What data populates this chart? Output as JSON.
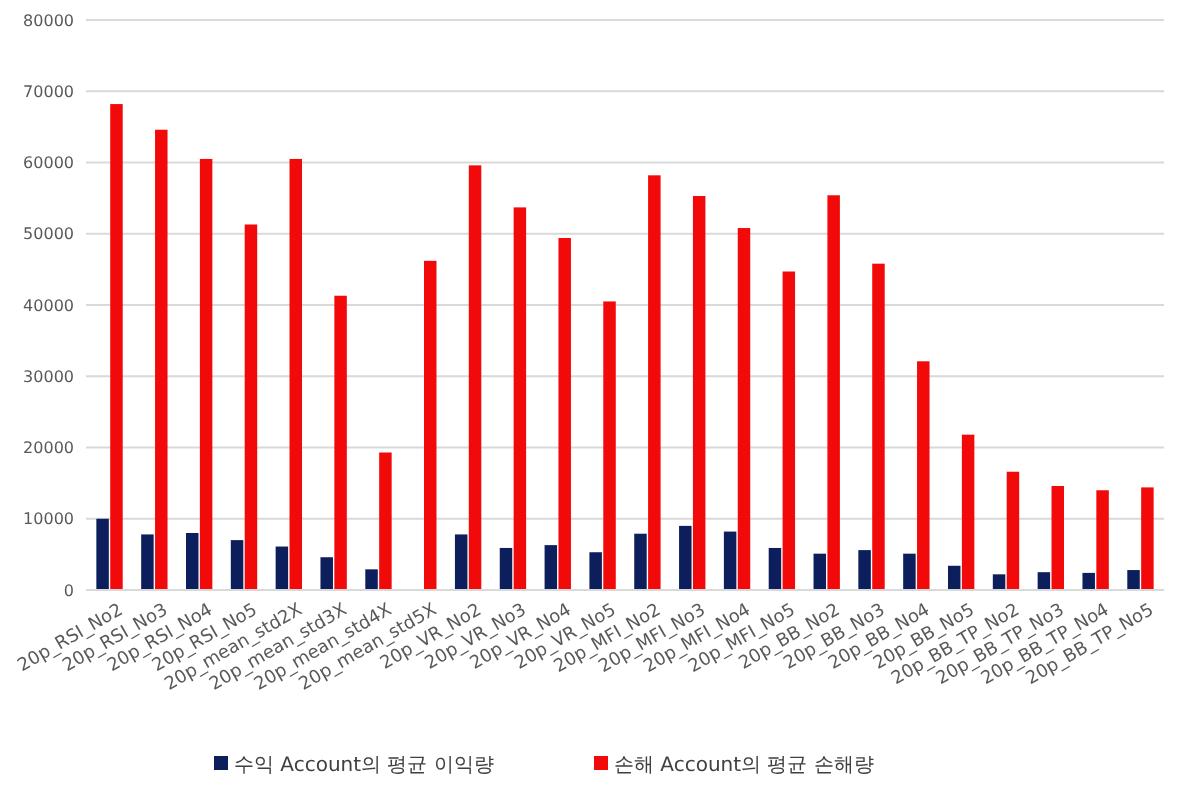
{
  "chart_data": {
    "type": "bar",
    "categories": [
      "20p_RSI_No2",
      "20p_RSI_No3",
      "20p_RSI_No4",
      "20p_RSI_No5",
      "20p_mean_std2X",
      "20p_mean_std3X",
      "20p_mean_std4X",
      "20p_mean_std5X",
      "20p_VR_No2",
      "20p_VR_No3",
      "20p_VR_No4",
      "20p_VR_No5",
      "20p_MFI_No2",
      "20p_MFI_No3",
      "20p_MFI_No4",
      "20p_MFI_No5",
      "20p_BB_No2",
      "20p_BB_No3",
      "20p_BB_No4",
      "20p_BB_No5",
      "20p_BB_TP_No2",
      "20p_BB_TP_No3",
      "20p_BB_TP_No4",
      "20p_BB_TP_No5"
    ],
    "series": [
      {
        "name": "수익 Account의 평균 이익량",
        "color": "#0c1f5c",
        "values": [
          10000,
          7800,
          8000,
          7000,
          6100,
          4600,
          2900,
          0,
          7800,
          5900,
          6300,
          5300,
          7900,
          9000,
          8200,
          5900,
          5100,
          5600,
          5100,
          3400,
          2200,
          2500,
          2400,
          2800
        ]
      },
      {
        "name": "손해 Account의 평균 손해량",
        "color": "#f20a0a",
        "values": [
          68200,
          64600,
          60500,
          51300,
          60500,
          41300,
          19300,
          46200,
          59600,
          53700,
          49400,
          40500,
          58200,
          55300,
          50800,
          44700,
          55400,
          45800,
          32100,
          21800,
          16600,
          14600,
          14000,
          14400
        ]
      }
    ],
    "ylim": [
      0,
      80000
    ],
    "yticks": [
      0,
      10000,
      20000,
      30000,
      40000,
      50000,
      60000,
      70000,
      80000
    ],
    "grid": "y",
    "legend": "bottom"
  }
}
